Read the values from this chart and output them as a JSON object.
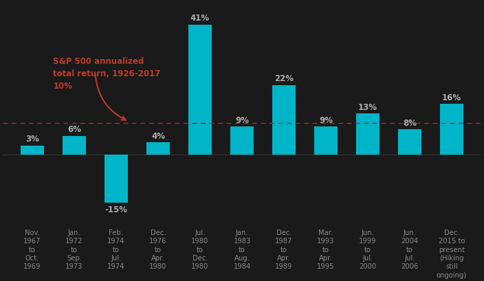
{
  "categories": [
    "Nov.\n1967\nto\nOct.\n1969",
    "Jan.\n1972\nto\nSep.\n1973",
    "Feb.\n1974\nto\nJul.\n1974",
    "Dec.\n1976\nto\nApr.\n1980",
    "Jul.\n1980\nto\nDec.\n1980",
    "Jan.\n1983\nto\nAug.\n1984",
    "Dec.\n1987\nto\nApr.\n1989",
    "Mar.\n1993\nto\nApr.\n1995",
    "Jun.\n1999\nto\nJul.\n2000",
    "Jun.\n2004\nto\nJul.\n2006",
    "Dec.\n2015 to\npresent\n(Hiking\nstill\nongoing)"
  ],
  "values": [
    3,
    6,
    -15,
    4,
    41,
    9,
    22,
    9,
    13,
    8,
    16
  ],
  "bar_color": "#00b5c8",
  "reference_line": 10,
  "reference_line_color": "#a52a2a",
  "background_color": "#1a1a1a",
  "annotation_text": "S&P 500 annualized\ntotal return, 1926-2017\n10%",
  "annotation_color": "#c0392b",
  "value_labels": [
    "3%",
    "6%",
    "-15%",
    "4%",
    "41%",
    "9%",
    "22%",
    "9%",
    "13%",
    "8%",
    "16%"
  ],
  "label_color": "#aaaaaa",
  "tick_color": "#888888",
  "ylim": [
    -22,
    48
  ],
  "bar_width": 0.55,
  "label_fontsize": 8.5,
  "tick_fontsize": 7.2,
  "annotation_fontsize": 8.5
}
